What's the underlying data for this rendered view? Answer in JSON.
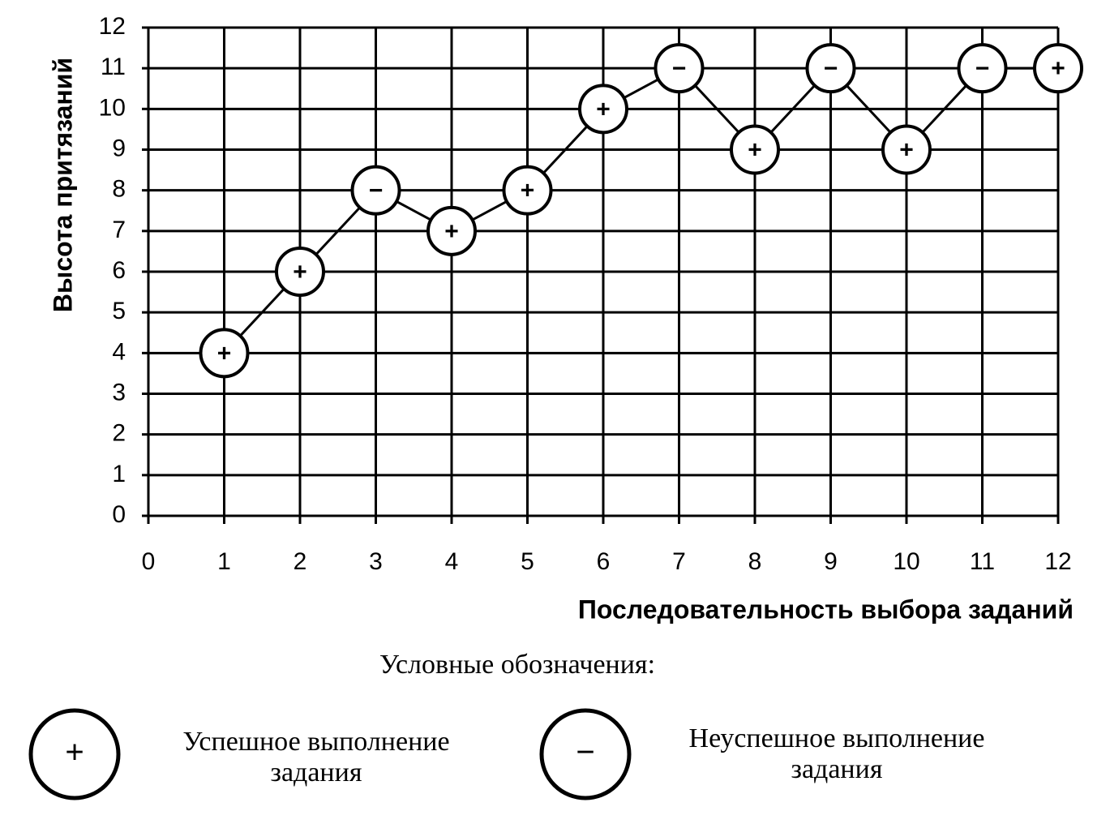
{
  "chart_data": {
    "type": "line",
    "x_label": "Последовательность выбора заданий",
    "y_label": "Высота притязаний",
    "x": [
      1,
      2,
      3,
      4,
      5,
      6,
      7,
      8,
      9,
      10,
      11,
      12
    ],
    "series": [
      {
        "color": "#000000",
        "values": [
          4,
          6,
          8,
          7,
          8,
          10,
          11,
          9,
          11,
          9,
          11,
          11
        ],
        "point_labels": [
          "+",
          "+",
          "−",
          "+",
          "+",
          "+",
          "−",
          "+",
          "−",
          "+",
          "−",
          "+"
        ]
      }
    ],
    "xlim": [
      0,
      12
    ],
    "xticks": [
      0,
      1,
      2,
      3,
      4,
      5,
      6,
      7,
      8,
      9,
      10,
      11,
      12
    ],
    "ylim": [
      0,
      12
    ],
    "yticks": [
      0,
      1,
      2,
      3,
      4,
      5,
      6,
      7,
      8,
      9,
      10,
      11,
      12
    ],
    "grid": true,
    "legend_title": "Условные обозначения:",
    "legend": [
      {
        "symbol": "+",
        "label": "Успешное выполнение задания"
      },
      {
        "symbol": "−",
        "label": "Неуспешное выполнение задания"
      }
    ]
  }
}
